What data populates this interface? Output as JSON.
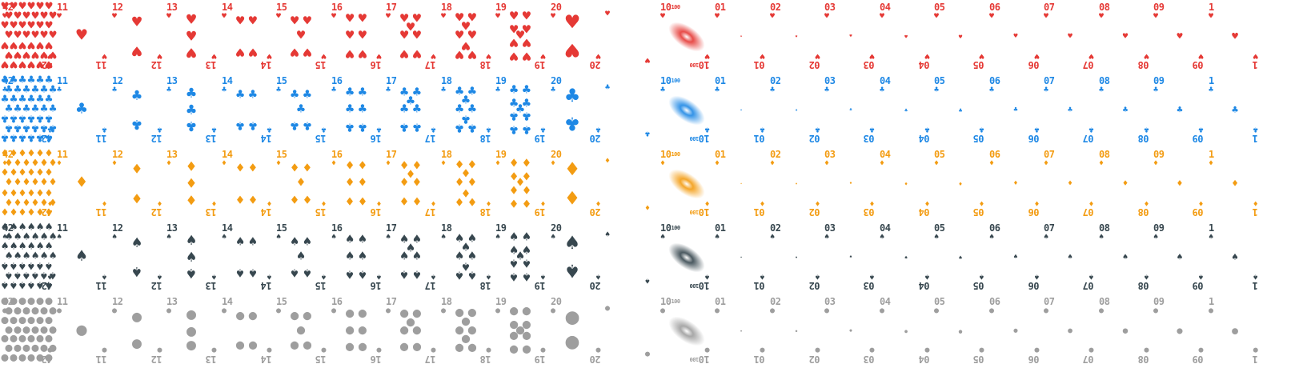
{
  "sheet": {
    "suits": [
      {
        "name": "hearts",
        "color": "#e53935",
        "icon": "heart-icon",
        "glyph": "♥"
      },
      {
        "name": "clubs",
        "color": "#1e88e5",
        "icon": "club-icon",
        "glyph": "♣"
      },
      {
        "name": "diamonds",
        "color": "#f39c12",
        "icon": "diamond-icon",
        "glyph": "♦"
      },
      {
        "name": "spades",
        "color": "#37474f",
        "icon": "spade-icon",
        "glyph": "♠"
      },
      {
        "name": "circles",
        "color": "#9e9e9e",
        "icon": "circle-icon",
        "glyph": "●"
      }
    ],
    "cards": [
      {
        "label": "42",
        "kind": "full",
        "pips": 42
      },
      {
        "label": "11",
        "kind": "pips",
        "pips": 1
      },
      {
        "label": "12",
        "kind": "pips",
        "pips": 2
      },
      {
        "label": "13",
        "kind": "pips",
        "pips": 3
      },
      {
        "label": "14",
        "kind": "pips",
        "pips": 4
      },
      {
        "label": "15",
        "kind": "pips",
        "pips": 5
      },
      {
        "label": "16",
        "kind": "pips",
        "pips": 6
      },
      {
        "label": "17",
        "kind": "pips",
        "pips": 7
      },
      {
        "label": "18",
        "kind": "pips",
        "pips": 8
      },
      {
        "label": "19",
        "kind": "pips",
        "pips": 9
      },
      {
        "label": "20",
        "kind": "big",
        "pips": 2
      },
      {
        "label": "",
        "kind": "blank",
        "pips": 0
      },
      {
        "label": "10",
        "sup": "100",
        "kind": "galaxy",
        "pips": 0
      },
      {
        "label": "01",
        "kind": "tiny",
        "size": 1
      },
      {
        "label": "02",
        "kind": "tiny",
        "size": 2
      },
      {
        "label": "03",
        "kind": "tiny",
        "size": 3
      },
      {
        "label": "04",
        "kind": "tiny",
        "size": 4
      },
      {
        "label": "05",
        "kind": "tiny",
        "size": 5
      },
      {
        "label": "06",
        "kind": "tiny",
        "size": 6
      },
      {
        "label": "07",
        "kind": "tiny",
        "size": 7
      },
      {
        "label": "08",
        "kind": "tiny",
        "size": 8
      },
      {
        "label": "09",
        "kind": "tiny",
        "size": 9
      },
      {
        "label": "1",
        "kind": "tiny",
        "size": 10
      }
    ]
  }
}
